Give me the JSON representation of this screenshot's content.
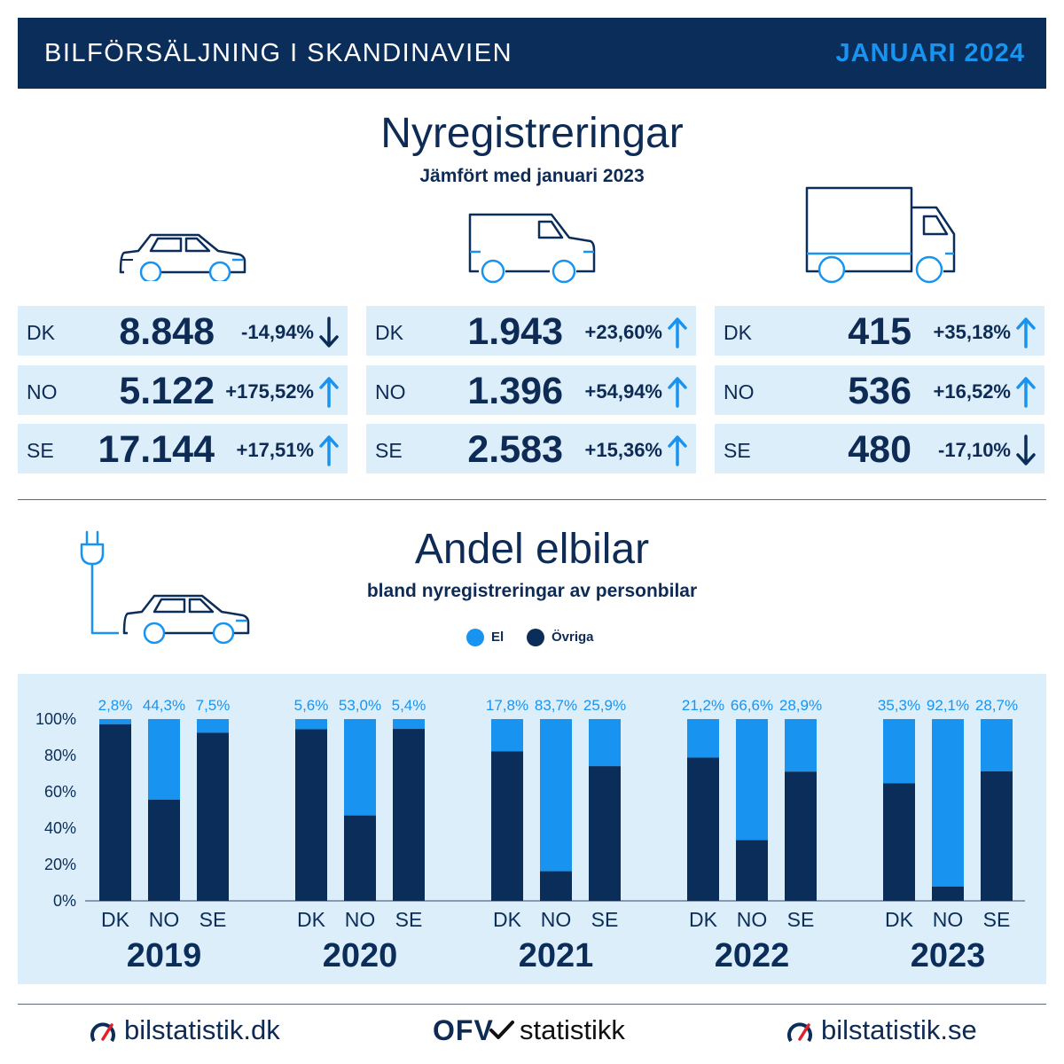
{
  "header": {
    "title": "BILFÖRSÄLJNING I SKANDINAVIEN",
    "date": "JANUARI 2024"
  },
  "registrations": {
    "title": "Nyregistreringar",
    "subtitle": "Jämfört med januari 2023",
    "groups": [
      {
        "icon": "car-icon",
        "rows": [
          {
            "country": "DK",
            "value": "8.848",
            "change": "-14,94%",
            "direction": "down"
          },
          {
            "country": "NO",
            "value": "5.122",
            "change": "+175,52%",
            "direction": "up"
          },
          {
            "country": "SE",
            "value": "17.144",
            "change": "+17,51%",
            "direction": "up"
          }
        ]
      },
      {
        "icon": "van-icon",
        "rows": [
          {
            "country": "DK",
            "value": "1.943",
            "change": "+23,60%",
            "direction": "up"
          },
          {
            "country": "NO",
            "value": "1.396",
            "change": "+54,94%",
            "direction": "up"
          },
          {
            "country": "SE",
            "value": "2.583",
            "change": "+15,36%",
            "direction": "up"
          }
        ]
      },
      {
        "icon": "truck-icon",
        "rows": [
          {
            "country": "DK",
            "value": "415",
            "change": "+35,18%",
            "direction": "up"
          },
          {
            "country": "NO",
            "value": "536",
            "change": "+16,52%",
            "direction": "up"
          },
          {
            "country": "SE",
            "value": "480",
            "change": "-17,10%",
            "direction": "down"
          }
        ]
      }
    ]
  },
  "ev": {
    "title": "Andel elbilar",
    "subtitle": "bland nyregistreringar av personbilar"
  },
  "chart_data": {
    "type": "bar",
    "stacked": true,
    "ylim": [
      0,
      100
    ],
    "yticks": [
      "0%",
      "20%",
      "40%",
      "60%",
      "80%",
      "100%"
    ],
    "legend": [
      {
        "name": "El",
        "color": "#1894f0"
      },
      {
        "name": "Övriga",
        "color": "#0b2d59"
      }
    ],
    "groups": [
      {
        "year": "2019",
        "bars": [
          {
            "country": "DK",
            "el": 2.8,
            "label": "2,8%"
          },
          {
            "country": "NO",
            "el": 44.3,
            "label": "44,3%"
          },
          {
            "country": "SE",
            "el": 7.5,
            "label": "7,5%"
          }
        ]
      },
      {
        "year": "2020",
        "bars": [
          {
            "country": "DK",
            "el": 5.6,
            "label": "5,6%"
          },
          {
            "country": "NO",
            "el": 53.0,
            "label": "53,0%"
          },
          {
            "country": "SE",
            "el": 5.4,
            "label": "5,4%"
          }
        ]
      },
      {
        "year": "2021",
        "bars": [
          {
            "country": "DK",
            "el": 17.8,
            "label": "17,8%"
          },
          {
            "country": "NO",
            "el": 83.7,
            "label": "83,7%"
          },
          {
            "country": "SE",
            "el": 25.9,
            "label": "25,9%"
          }
        ]
      },
      {
        "year": "2022",
        "bars": [
          {
            "country": "DK",
            "el": 21.2,
            "label": "21,2%"
          },
          {
            "country": "NO",
            "el": 66.6,
            "label": "66,6%"
          },
          {
            "country": "SE",
            "el": 28.9,
            "label": "28,9%"
          }
        ]
      },
      {
        "year": "2023",
        "bars": [
          {
            "country": "DK",
            "el": 35.3,
            "label": "35,3%"
          },
          {
            "country": "NO",
            "el": 92.1,
            "label": "92,1%"
          },
          {
            "country": "SE",
            "el": 28.7,
            "label": "28,7%"
          }
        ]
      }
    ]
  },
  "footer": {
    "left": "bilstatistik.dk",
    "center_logo": "OFV",
    "center": "statistikk",
    "right": "bilstatistik.se"
  },
  "colors": {
    "navy": "#0b2d59",
    "blue": "#1894f0",
    "light": "#ddeefb"
  }
}
